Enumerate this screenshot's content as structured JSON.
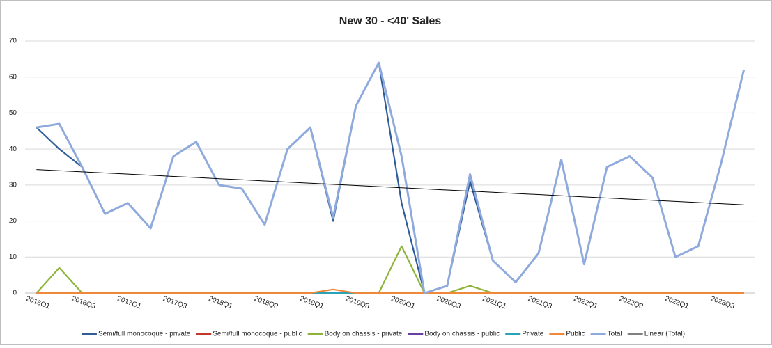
{
  "chart_data": {
    "type": "line",
    "title": "New 30 - <40' Sales",
    "categories": [
      "2016Q1",
      null,
      "2016Q3",
      null,
      "2017Q1",
      null,
      "2017Q3",
      null,
      "2018Q1",
      null,
      "2018Q3",
      null,
      "2019Q1",
      null,
      "2019Q3",
      null,
      "2020Q1",
      null,
      "2020Q3",
      null,
      "2021Q1",
      null,
      "2021Q3",
      null,
      "2022Q1",
      null,
      "2022Q3",
      null,
      "2023Q1",
      null,
      "2023Q3",
      null
    ],
    "series": [
      {
        "name": "Semi/full monocoque - private",
        "color": "#2f5d9a",
        "values": [
          46,
          40,
          35,
          22,
          25,
          18,
          38,
          42,
          30,
          29,
          19,
          40,
          46,
          20,
          52,
          64,
          25,
          0,
          2,
          31,
          9,
          3,
          11,
          37,
          8,
          35,
          38,
          32,
          10,
          13,
          36,
          62
        ]
      },
      {
        "name": "Semi/full monocoque - public",
        "color": "#c0392b",
        "values": [
          0,
          0,
          0,
          0,
          0,
          0,
          0,
          0,
          0,
          0,
          0,
          0,
          0,
          0,
          0,
          0,
          0,
          0,
          0,
          0,
          0,
          0,
          0,
          0,
          0,
          0,
          0,
          0,
          0,
          0,
          0,
          0
        ]
      },
      {
        "name": "Body on chassis - private",
        "color": "#8db33a",
        "values": [
          0,
          7,
          0,
          0,
          0,
          0,
          0,
          0,
          0,
          0,
          0,
          0,
          0,
          0,
          0,
          0,
          13,
          0,
          0,
          2,
          0,
          0,
          0,
          0,
          0,
          0,
          0,
          0,
          0,
          0,
          0,
          0
        ]
      },
      {
        "name": "Body on chassis - public",
        "color": "#6b3fa0",
        "values": [
          0,
          0,
          0,
          0,
          0,
          0,
          0,
          0,
          0,
          0,
          0,
          0,
          0,
          0,
          0,
          0,
          0,
          0,
          0,
          0,
          0,
          0,
          0,
          0,
          0,
          0,
          0,
          0,
          0,
          0,
          0,
          0
        ]
      },
      {
        "name": "Private",
        "color": "#2aa3b8",
        "values": [
          0,
          0,
          0,
          0,
          0,
          0,
          0,
          0,
          0,
          0,
          0,
          0,
          0,
          0,
          0,
          0,
          0,
          0,
          0,
          0,
          0,
          0,
          0,
          0,
          0,
          0,
          0,
          0,
          0,
          0,
          0,
          0
        ]
      },
      {
        "name": "Public",
        "color": "#f0883a",
        "values": [
          0,
          0,
          0,
          0,
          0,
          0,
          0,
          0,
          0,
          0,
          0,
          0,
          0,
          1,
          0,
          0,
          0,
          0,
          0,
          0,
          0,
          0,
          0,
          0,
          0,
          0,
          0,
          0,
          0,
          0,
          0,
          0
        ]
      },
      {
        "name": "Total",
        "color": "#8faadc",
        "values": [
          46,
          47,
          35,
          22,
          25,
          18,
          38,
          42,
          30,
          29,
          19,
          40,
          46,
          21,
          52,
          64,
          38,
          0,
          2,
          33,
          9,
          3,
          11,
          37,
          8,
          35,
          38,
          32,
          10,
          13,
          36,
          62
        ]
      },
      {
        "name": "Linear (Total)",
        "color": "#000000",
        "values": [
          34.3,
          33.98,
          33.67,
          33.35,
          33.04,
          32.72,
          32.4,
          32.09,
          31.77,
          31.46,
          31.14,
          30.82,
          30.51,
          30.19,
          29.88,
          29.56,
          29.24,
          28.93,
          28.61,
          28.3,
          27.98,
          27.66,
          27.35,
          27.03,
          26.72,
          26.4,
          26.08,
          25.77,
          25.45,
          25.14,
          24.82,
          24.5
        ]
      }
    ],
    "ylim": [
      0,
      70
    ],
    "yticks": [
      0,
      10,
      20,
      30,
      40,
      50,
      60,
      70
    ],
    "grid": true
  }
}
